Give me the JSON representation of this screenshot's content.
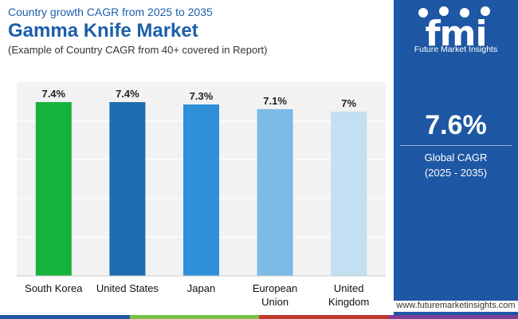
{
  "header": {
    "subtitle": "Country growth CAGR from 2025 to 2035",
    "title": "Gamma Knife Market",
    "note": "(Example of Country CAGR from 40+ covered in Report)"
  },
  "chart_data": {
    "type": "bar",
    "categories": [
      [
        "South Korea"
      ],
      [
        "United States"
      ],
      [
        "Japan"
      ],
      [
        "European",
        "Union"
      ],
      [
        "United",
        "Kingdom"
      ]
    ],
    "values": [
      7.4,
      7.4,
      7.3,
      7.1,
      7.0
    ],
    "data_labels": [
      "7.4%",
      "7.4%",
      "7.3%",
      "7.1%",
      "7%"
    ],
    "colors": [
      "#16b33c",
      "#1e6bb0",
      "#2f8fd8",
      "#7dbae6",
      "#c2e0f2"
    ],
    "ylim": [
      0,
      8.25
    ],
    "grid": true,
    "gridlines": [
      1.65,
      3.3,
      4.95,
      6.6
    ],
    "xlabel": "",
    "ylabel": ""
  },
  "side": {
    "brand_word": "fmi",
    "brand_name": "Future Market Insights",
    "global_value": "7.6%",
    "global_label": "Global CAGR",
    "global_period": "(2025 - 2035)",
    "website": "www.futuremarketinsights.com"
  },
  "colors": {
    "title_blue": "#1b5faa",
    "panel_blue": "#1e57a3",
    "strip": [
      "#1e57a3",
      "#7ac143",
      "#c0392b",
      "#7b3f98"
    ]
  }
}
